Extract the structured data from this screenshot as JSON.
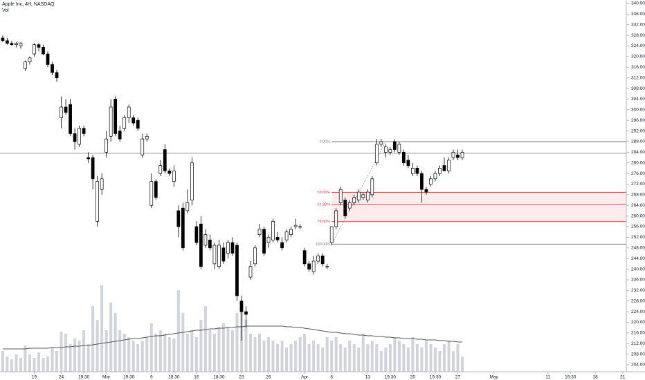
{
  "chart_data": {
    "type": "candlestick",
    "title": "Apple Inc, 4H, NASDAQ",
    "subtitle": "Vol",
    "up_color": "#ffffff",
    "down_color": "#000000",
    "volume_color": "#d1d4dc",
    "ma_color": "#555555",
    "xlim": [
      -0.6,
      138.4
    ],
    "ylim": [
      201.4,
      341.3
    ],
    "volume_ylim": [
      0,
      140
    ],
    "xticks": [
      {
        "value": 7,
        "label": "19"
      },
      {
        "value": 13,
        "label": "24"
      },
      {
        "value": 18,
        "label": "19:30"
      },
      {
        "value": 23,
        "label": "Mar"
      },
      {
        "value": 28,
        "label": "19:30"
      },
      {
        "value": 33,
        "label": "9"
      },
      {
        "value": 38,
        "label": "18:30"
      },
      {
        "value": 43,
        "label": "16"
      },
      {
        "value": 48,
        "label": "18:30"
      },
      {
        "value": 53,
        "label": "23"
      },
      {
        "value": 59,
        "label": "26"
      },
      {
        "value": 67,
        "label": "Apr"
      },
      {
        "value": 73,
        "label": "6"
      },
      {
        "value": 81,
        "label": "13"
      },
      {
        "value": 86,
        "label": "19:30"
      },
      {
        "value": 91,
        "label": "20"
      },
      {
        "value": 96,
        "label": "19:30"
      },
      {
        "value": 101,
        "label": "27"
      },
      {
        "value": 109,
        "label": "May"
      },
      {
        "value": 121,
        "label": "11"
      },
      {
        "value": 126,
        "label": "19:30"
      },
      {
        "value": 131.5,
        "label": "18"
      },
      {
        "value": 137.6,
        "label": "21"
      }
    ],
    "yticks": [
      {
        "value": 340,
        "label": "340.00"
      },
      {
        "value": 336,
        "label": "336.00"
      },
      {
        "value": 332,
        "label": "332.00"
      },
      {
        "value": 328,
        "label": "328.00"
      },
      {
        "value": 324,
        "label": "324.00"
      },
      {
        "value": 320,
        "label": "320.00"
      },
      {
        "value": 316,
        "label": "316.00"
      },
      {
        "value": 312,
        "label": "312.00"
      },
      {
        "value": 308,
        "label": "308.00"
      },
      {
        "value": 304,
        "label": "304.00"
      },
      {
        "value": 300,
        "label": "300.00"
      },
      {
        "value": 296,
        "label": "296.00"
      },
      {
        "value": 292,
        "label": "292.00"
      },
      {
        "value": 288,
        "label": "288.00"
      },
      {
        "value": 284,
        "label": "284.00"
      },
      {
        "value": 280,
        "label": "280.00"
      },
      {
        "value": 276,
        "label": "276.00"
      },
      {
        "value": 272,
        "label": "272.00"
      },
      {
        "value": 268,
        "label": "268.00"
      },
      {
        "value": 264,
        "label": "264.00"
      },
      {
        "value": 260,
        "label": "260.00"
      },
      {
        "value": 256,
        "label": "256.00"
      },
      {
        "value": 252,
        "label": "252.00"
      },
      {
        "value": 248,
        "label": "248.00"
      },
      {
        "value": 244,
        "label": "244.00"
      },
      {
        "value": 240,
        "label": "240.00"
      },
      {
        "value": 236,
        "label": "236.00"
      },
      {
        "value": 232,
        "label": "232.00"
      },
      {
        "value": 228,
        "label": "228.00"
      },
      {
        "value": 224,
        "label": "224.00"
      },
      {
        "value": 220,
        "label": "220.00"
      },
      {
        "value": 216,
        "label": "216.00"
      },
      {
        "value": 212,
        "label": "212.00"
      },
      {
        "value": 208,
        "label": "208.00"
      },
      {
        "value": 204,
        "label": "204.00"
      }
    ],
    "open": [
      327,
      326,
      325,
      324.5,
      324,
      315.5,
      318,
      321,
      324.5,
      323.5,
      321,
      317,
      314,
      297,
      301,
      302,
      291,
      287,
      293,
      282,
      282,
      258,
      270,
      284,
      290,
      304,
      292,
      293,
      297,
      297,
      296,
      283,
      289,
      264,
      273,
      276,
      285,
      277,
      273,
      262,
      263,
      262,
      266,
      256,
      257,
      249,
      251,
      242,
      241,
      248,
      246,
      250,
      249,
      228,
      224,
      237,
      242,
      253,
      255,
      250,
      251,
      252,
      250,
      251,
      253,
      256,
      256,
      247,
      242,
      239,
      243,
      245,
      241,
      250,
      256,
      265,
      266,
      263,
      265,
      266,
      267,
      266,
      268,
      280,
      287,
      284,
      284,
      288,
      284,
      284,
      281,
      276,
      278,
      276,
      270,
      272,
      274,
      276,
      279,
      277,
      282,
      283,
      282
    ],
    "high": [
      328,
      327,
      326,
      325.5,
      325.5,
      318.5,
      320,
      325,
      325,
      324.5,
      322,
      318,
      315,
      305,
      304,
      304,
      293,
      294,
      294,
      284,
      283,
      275,
      276,
      292,
      304,
      305,
      294,
      298,
      302,
      298,
      297,
      291,
      291,
      276,
      274,
      281,
      287,
      278,
      279,
      264,
      265,
      270,
      282,
      258,
      260,
      255,
      253,
      250,
      251,
      250,
      251,
      252,
      250,
      230,
      226,
      243,
      249,
      257,
      256,
      253,
      259,
      254,
      252,
      255,
      256,
      259,
      257,
      248,
      243,
      245,
      246,
      246,
      242,
      256,
      263,
      271,
      267,
      266,
      268,
      270,
      269,
      270,
      275,
      289,
      289,
      287,
      286,
      289,
      288,
      285,
      283,
      280,
      279,
      277,
      271,
      275,
      277,
      279,
      282,
      282,
      285,
      285,
      285
    ],
    "low": [
      325.5,
      324.5,
      324,
      323.5,
      323,
      314.5,
      317,
      320,
      322,
      320.5,
      316,
      313,
      310.5,
      293,
      298,
      290,
      285,
      286,
      290,
      280,
      270,
      256,
      268,
      282,
      288,
      290,
      288,
      292,
      295,
      294,
      292,
      282,
      288,
      263,
      266,
      275,
      276,
      275,
      271,
      252,
      247,
      261,
      264,
      249,
      240,
      248,
      247,
      240,
      240,
      242,
      244,
      245,
      228,
      213,
      218,
      236,
      241,
      252,
      245,
      248,
      250,
      250,
      247,
      250,
      252,
      255,
      255,
      241,
      239,
      238,
      242,
      241,
      240,
      249,
      255,
      264,
      259,
      262,
      264,
      265,
      266,
      265,
      267,
      279,
      286,
      282,
      283,
      284,
      283,
      279,
      278,
      275,
      275,
      265,
      268,
      271,
      273,
      275,
      277,
      276,
      281,
      281,
      281
    ],
    "close": [
      326,
      325,
      324.5,
      325,
      325,
      318,
      319.5,
      324.5,
      323.5,
      321,
      317,
      314,
      312,
      301,
      299,
      291,
      288,
      293,
      291,
      281.5,
      274,
      273,
      274,
      289,
      301,
      291,
      289,
      297,
      301,
      295,
      293,
      289,
      290,
      273,
      267,
      279,
      277,
      276,
      277,
      256,
      248,
      265,
      280,
      250,
      241,
      253,
      248,
      249,
      249,
      243,
      250,
      246,
      230,
      224,
      223,
      241,
      248,
      255,
      246,
      252,
      258,
      251,
      248,
      254,
      255,
      256.5,
      256,
      242,
      240,
      243,
      245,
      242,
      241,
      256,
      262,
      270,
      260,
      265,
      267,
      269,
      268,
      269,
      274,
      287,
      288,
      286,
      285,
      285,
      287,
      280,
      279,
      278,
      276,
      270,
      269,
      274,
      276,
      278,
      277,
      281,
      284,
      282,
      284
    ],
    "volume": [
      30,
      22,
      18,
      25,
      20,
      38,
      25,
      20,
      28,
      20,
      22,
      35,
      30,
      58,
      55,
      40,
      48,
      45,
      60,
      40,
      95,
      75,
      125,
      60,
      100,
      85,
      60,
      55,
      50,
      45,
      40,
      45,
      50,
      70,
      55,
      60,
      55,
      50,
      48,
      118,
      85,
      55,
      60,
      50,
      75,
      95,
      60,
      55,
      65,
      70,
      65,
      60,
      85,
      95,
      75,
      55,
      50,
      55,
      45,
      50,
      45,
      40,
      45,
      35,
      40,
      45,
      50,
      55,
      40,
      45,
      40,
      35,
      50,
      45,
      50,
      40,
      35,
      45,
      40,
      35,
      55,
      40,
      45,
      40,
      30,
      35,
      40,
      50,
      45,
      40,
      35,
      50,
      40,
      35,
      45,
      40,
      35,
      30,
      40,
      45,
      30,
      40,
      22
    ],
    "volume_ma": [
      33,
      33,
      33,
      33,
      33,
      33,
      34,
      34,
      34,
      34,
      34,
      35,
      35,
      35,
      36,
      36,
      37,
      37,
      38,
      38,
      39,
      40,
      41,
      42,
      43,
      44,
      45,
      46,
      47,
      48,
      48,
      49,
      50,
      51,
      52,
      52,
      53,
      54,
      55,
      56,
      57,
      58,
      59,
      60,
      60,
      61,
      62,
      62,
      63,
      63,
      64,
      64,
      65,
      65,
      66,
      66,
      66,
      66,
      66,
      66,
      66,
      66,
      66,
      65,
      65,
      64,
      64,
      63,
      62,
      61,
      60,
      59,
      58,
      57,
      57,
      56,
      55,
      55,
      54,
      53,
      53,
      52,
      52,
      51,
      51,
      50,
      50,
      49,
      49,
      48,
      48,
      48,
      47,
      47,
      46,
      46,
      46,
      45,
      45,
      44,
      44,
      43,
      43
    ],
    "hline": 283.6,
    "hline_color": "#9598a1",
    "fib": {
      "start": 73,
      "end": 85,
      "levels": [
        {
          "label": "0.00%",
          "value": 288.0,
          "color": "#787b86"
        },
        {
          "label": "50.00%",
          "value": 268.9,
          "color": "#f23645"
        },
        {
          "label": "61.80%",
          "value": 264.3,
          "color": "#f23645"
        },
        {
          "label": "78.60%",
          "value": 257.9,
          "color": "#f23645"
        },
        {
          "label": "100.00%",
          "value": 249.4,
          "color": "#787b86"
        }
      ]
    }
  }
}
